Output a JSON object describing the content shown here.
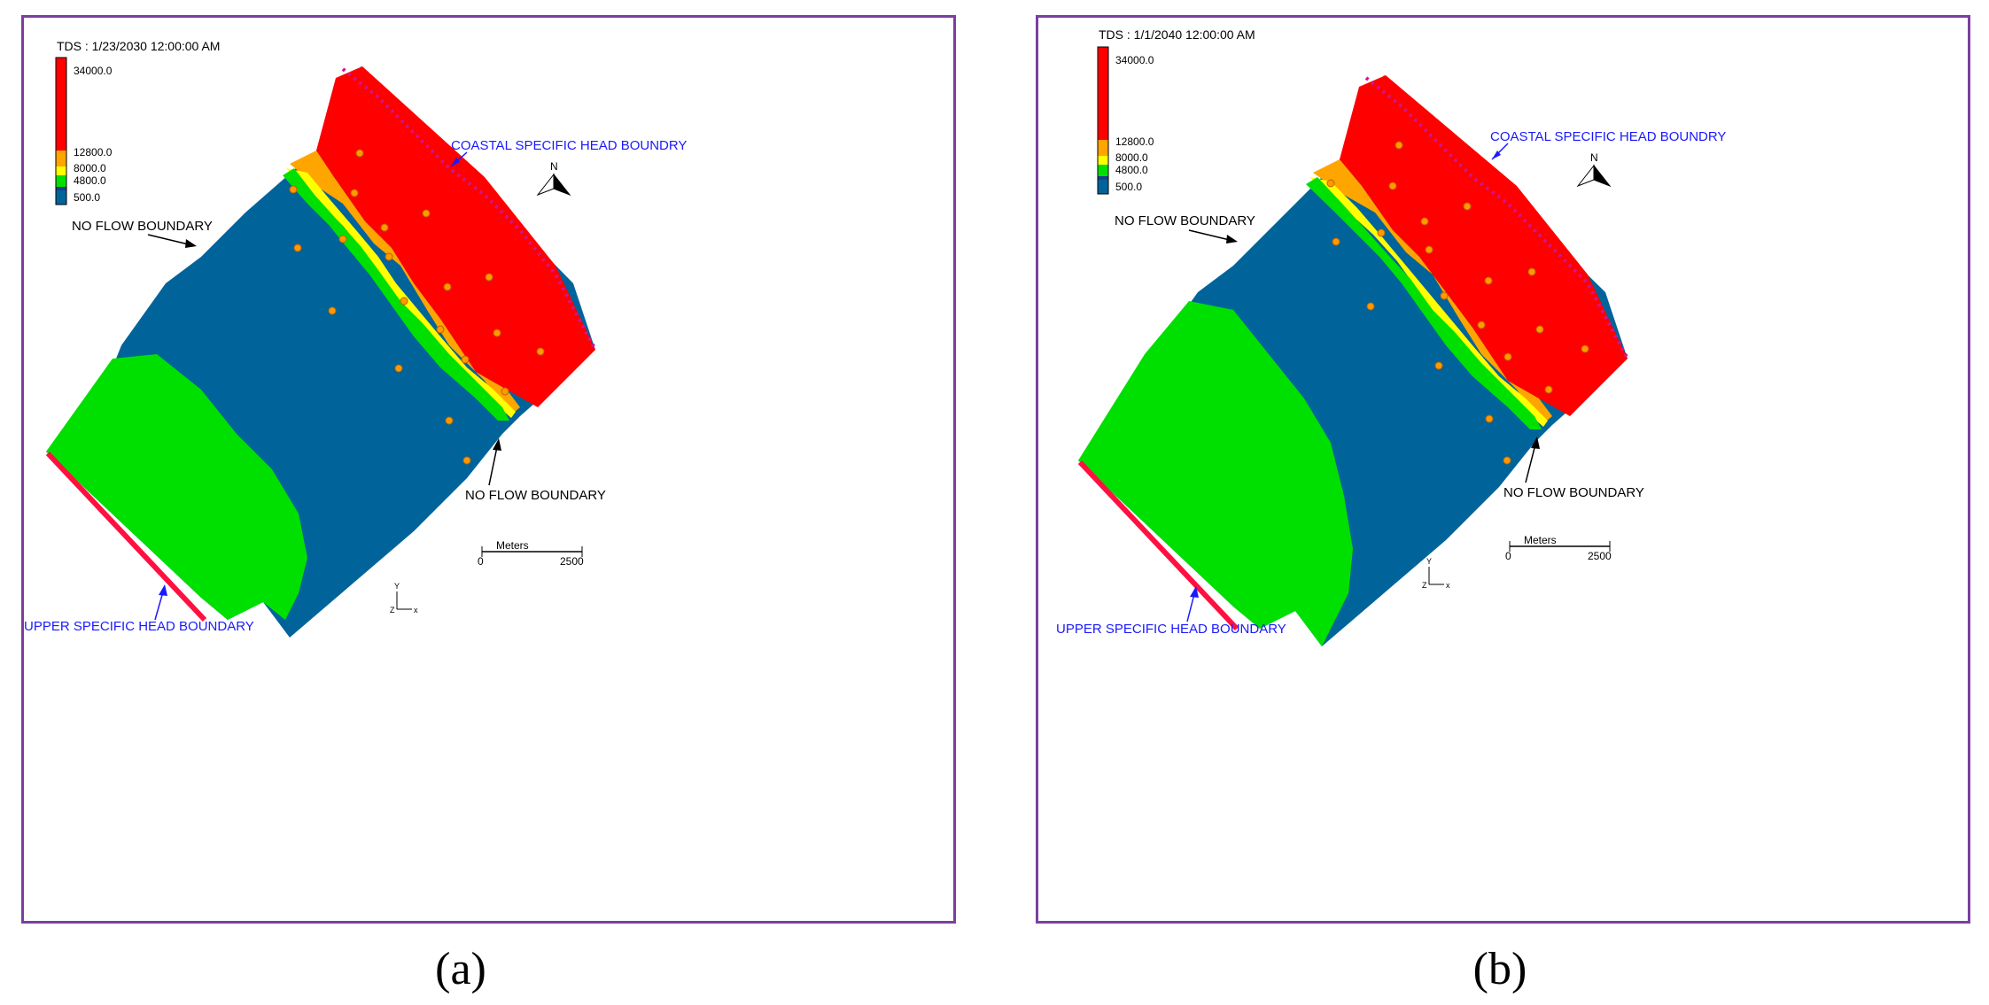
{
  "panels": [
    {
      "id": "a",
      "sublabel": "(a)",
      "legend_title": "TDS : 1/23/2030 12:00:00 AM",
      "legend_values": [
        "34000.0",
        "12800.0",
        "8000.0",
        "4800.0",
        "500.0"
      ],
      "labels": {
        "coastal": "COASTAL SPECIFIC HEAD BOUNDRY",
        "no_flow_top": "NO FLOW BOUNDARY",
        "no_flow_right": "NO FLOW BOUNDARY",
        "upper": "UPPER SPECIFIC HEAD BOUNDARY",
        "north": "N",
        "scale_unit": "Meters",
        "scale_min": "0",
        "scale_max": "2500"
      }
    },
    {
      "id": "b",
      "sublabel": "(b)",
      "legend_title": "TDS : 1/1/2040 12:00:00 AM",
      "legend_values": [
        "34000.0",
        "12800.0",
        "8000.0",
        "4800.0",
        "500.0"
      ],
      "labels": {
        "coastal": "COASTAL SPECIFIC HEAD BOUNDRY",
        "no_flow_top": "NO FLOW BOUNDARY",
        "no_flow_right": "NO FLOW BOUNDARY",
        "upper": "UPPER SPECIFIC HEAD BOUNDARY",
        "north": "N",
        "scale_unit": "Meters",
        "scale_min": "0",
        "scale_max": "2500"
      }
    }
  ],
  "colors": {
    "frame": "#7b3fa0",
    "red": "#ff0000",
    "orange": "#ffa500",
    "yellow": "#ffff00",
    "green": "#00e000",
    "blue": "#00649a",
    "well": "#ff9900",
    "boundary_label": "#1a1aff"
  }
}
